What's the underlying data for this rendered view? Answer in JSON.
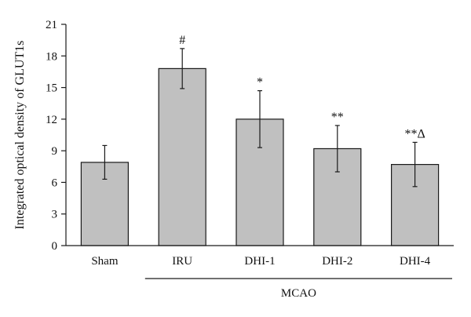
{
  "chart_data": {
    "type": "bar",
    "title": "",
    "ylabel": "Integrated optical density of GLUT1s",
    "xlabel": "",
    "ylim": [
      0,
      21
    ],
    "yticks": [
      "0",
      "3",
      "6",
      "9",
      "12",
      "15",
      "18",
      "21"
    ],
    "grid": false,
    "categories": [
      "Sham",
      "IRU",
      "DHI-1",
      "DHI-2",
      "DHI-4"
    ],
    "values": [
      7.9,
      16.8,
      12.0,
      9.2,
      7.7
    ],
    "errors": [
      1.6,
      1.9,
      2.7,
      2.2,
      2.1
    ],
    "significance": [
      "",
      "#",
      "*",
      "**",
      "**Δ"
    ],
    "group_bracket": {
      "label": "MCAO",
      "from": "IRU",
      "to": "DHI-4"
    },
    "bar_color": "#c0c0c0",
    "edge_color": "#1a1a1a"
  }
}
